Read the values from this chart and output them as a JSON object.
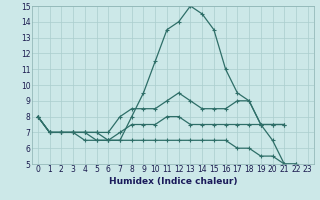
{
  "xlabel": "Humidex (Indice chaleur)",
  "ylabel": "",
  "xlim": [
    -0.5,
    23.5
  ],
  "ylim": [
    5,
    15
  ],
  "yticks": [
    5,
    6,
    7,
    8,
    9,
    10,
    11,
    12,
    13,
    14,
    15
  ],
  "xticks": [
    0,
    1,
    2,
    3,
    4,
    5,
    6,
    7,
    8,
    9,
    10,
    11,
    12,
    13,
    14,
    15,
    16,
    17,
    18,
    19,
    20,
    21,
    22,
    23
  ],
  "background_color": "#cce8e8",
  "grid_color": "#aacece",
  "line_color": "#2e6e68",
  "line1_x": [
    0,
    1,
    2,
    3,
    4,
    5,
    6,
    7,
    8,
    9,
    10,
    11,
    12,
    13,
    14,
    15,
    16,
    17,
    18,
    19,
    20,
    21,
    22
  ],
  "line1_y": [
    8.0,
    7.0,
    7.0,
    7.0,
    7.0,
    7.0,
    6.5,
    6.5,
    8.0,
    9.5,
    11.5,
    13.5,
    14.0,
    15.0,
    14.5,
    13.5,
    11.0,
    9.5,
    9.0,
    7.5,
    6.5,
    5.0,
    5.0
  ],
  "line2_x": [
    0,
    1,
    2,
    3,
    4,
    5,
    6,
    7,
    8,
    9,
    10,
    11,
    12,
    13,
    14,
    15,
    16,
    17,
    18,
    19,
    20,
    21
  ],
  "line2_y": [
    8.0,
    7.0,
    7.0,
    7.0,
    7.0,
    7.0,
    7.0,
    8.0,
    8.5,
    8.5,
    8.5,
    9.0,
    9.5,
    9.0,
    8.5,
    8.5,
    8.5,
    9.0,
    9.0,
    7.5,
    7.5,
    7.5
  ],
  "line3_x": [
    0,
    1,
    2,
    3,
    4,
    5,
    6,
    7,
    8,
    9,
    10,
    11,
    12,
    13,
    14,
    15,
    16,
    17,
    18,
    19,
    20,
    21
  ],
  "line3_y": [
    8.0,
    7.0,
    7.0,
    7.0,
    7.0,
    6.5,
    6.5,
    7.0,
    7.5,
    7.5,
    7.5,
    8.0,
    8.0,
    7.5,
    7.5,
    7.5,
    7.5,
    7.5,
    7.5,
    7.5,
    7.5,
    7.5
  ],
  "line4_x": [
    0,
    1,
    2,
    3,
    4,
    5,
    6,
    7,
    8,
    9,
    10,
    11,
    12,
    13,
    14,
    15,
    16,
    17,
    18,
    19,
    20,
    21,
    22
  ],
  "line4_y": [
    8.0,
    7.0,
    7.0,
    7.0,
    6.5,
    6.5,
    6.5,
    6.5,
    6.5,
    6.5,
    6.5,
    6.5,
    6.5,
    6.5,
    6.5,
    6.5,
    6.5,
    6.0,
    6.0,
    5.5,
    5.5,
    5.0,
    5.0
  ]
}
